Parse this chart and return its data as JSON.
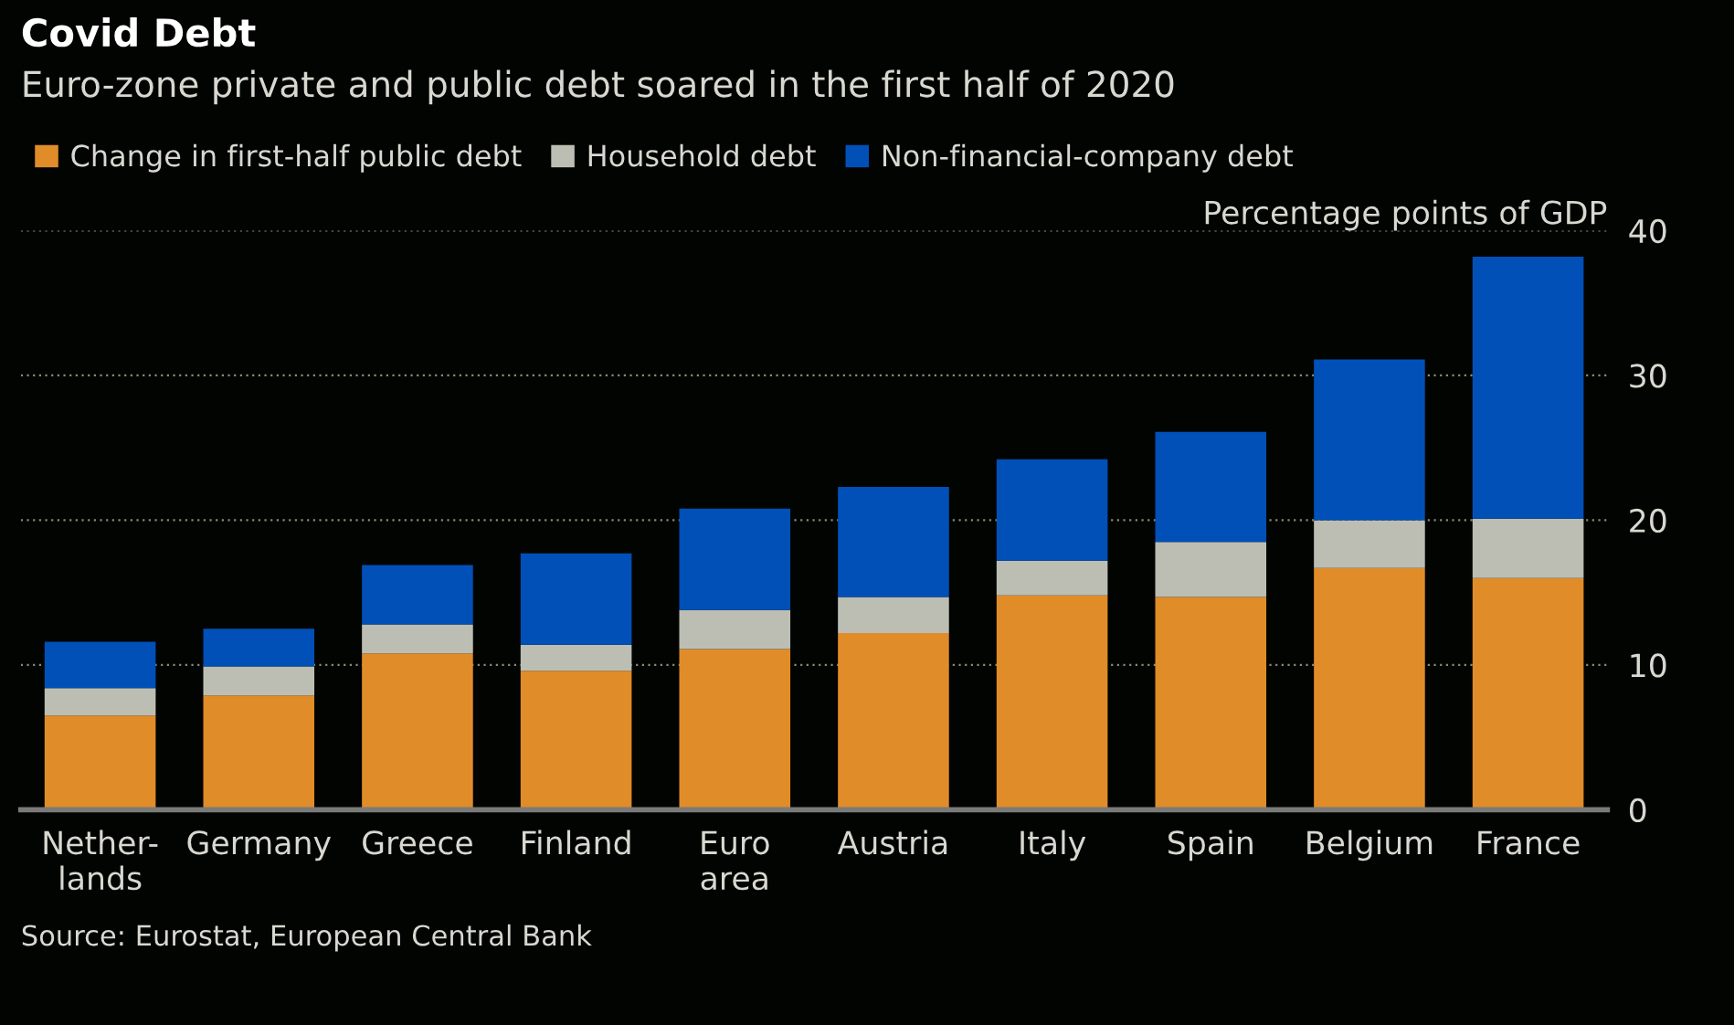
{
  "chart_data": {
    "type": "bar",
    "stacked": true,
    "title": "Covid Debt",
    "subtitle": "Euro-zone private and public debt soared in the first half of 2020",
    "categories": [
      "Nether-\nlands",
      "Germany",
      "Greece",
      "Finland",
      "Euro\narea",
      "Austria",
      "Italy",
      "Spain",
      "Belgium",
      "France"
    ],
    "series": [
      {
        "name": "Change in first-half public debt",
        "color": "#e08c28",
        "values": [
          6.5,
          7.9,
          10.8,
          9.6,
          11.1,
          12.2,
          14.8,
          14.7,
          16.7,
          16.0
        ]
      },
      {
        "name": "Household debt",
        "color": "#bcbeb4",
        "values": [
          1.9,
          2.0,
          2.0,
          1.8,
          2.7,
          2.5,
          2.4,
          3.8,
          3.3,
          4.1
        ]
      },
      {
        "name": "Non-financial-company debt",
        "color": "#0050b8",
        "values": [
          3.2,
          2.6,
          4.1,
          6.3,
          7.0,
          7.6,
          7.0,
          7.6,
          11.1,
          18.1
        ]
      }
    ],
    "ylim": [
      0,
      40
    ],
    "yticks": [
      0,
      10,
      20,
      30,
      40
    ],
    "ylabel": "Percentage points of GDP",
    "grid": "y",
    "legend": "top left",
    "annotations": [
      "Source: Eurostat, European Central Bank"
    ]
  }
}
